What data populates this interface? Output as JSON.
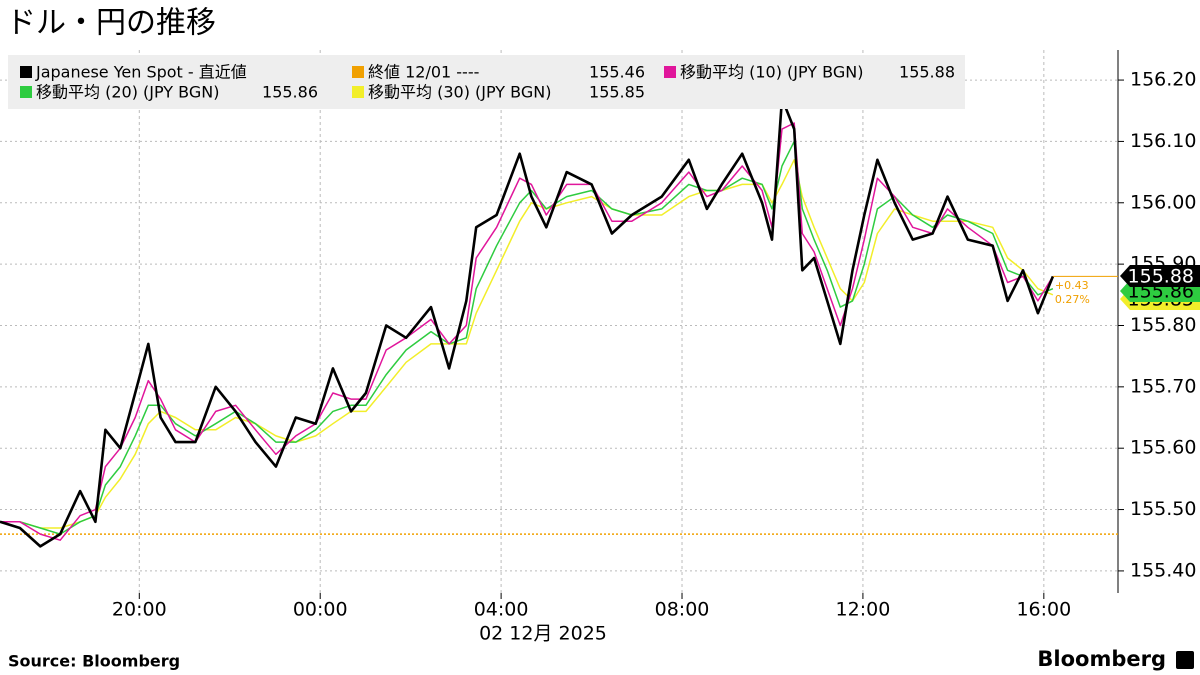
{
  "chart_data": {
    "type": "line",
    "title": "ドル・円の推移",
    "x_label": "02 12月 2025",
    "source": "Source:  Bloomberg",
    "brand": "Bloomberg",
    "x": [
      16.92,
      17.36,
      17.81,
      18.25,
      18.69,
      19.03,
      19.25,
      19.58,
      19.91,
      20.2,
      20.47,
      20.8,
      21.24,
      21.69,
      22.13,
      22.57,
      23.02,
      23.46,
      23.9,
      24.28,
      24.68,
      25.01,
      25.46,
      25.9,
      26.45,
      26.85,
      27.23,
      27.45,
      27.9,
      28.41,
      28.67,
      29.0,
      29.45,
      30.0,
      30.45,
      30.89,
      31.55,
      32.15,
      32.55,
      32.88,
      33.33,
      33.77,
      33.99,
      34.21,
      34.48,
      34.66,
      34.92,
      35.21,
      35.5,
      35.77,
      36.03,
      36.32,
      36.7,
      37.1,
      37.54,
      37.87,
      38.32,
      38.87,
      39.2,
      39.54,
      39.87,
      40.2
    ],
    "series": [
      {
        "name": "Japanese Yen Spot - 直近値",
        "color": "#000000",
        "width": 2.6,
        "values": [
          155.48,
          155.47,
          155.44,
          155.46,
          155.53,
          155.48,
          155.63,
          155.6,
          155.69,
          155.77,
          155.65,
          155.61,
          155.61,
          155.7,
          155.66,
          155.61,
          155.57,
          155.65,
          155.64,
          155.73,
          155.66,
          155.69,
          155.8,
          155.78,
          155.83,
          155.73,
          155.84,
          155.96,
          155.98,
          156.08,
          156.01,
          155.96,
          156.05,
          156.03,
          155.95,
          155.98,
          156.01,
          156.07,
          155.99,
          156.03,
          156.08,
          156.0,
          155.94,
          156.17,
          156.12,
          155.89,
          155.91,
          155.84,
          155.77,
          155.89,
          155.98,
          156.07,
          156.0,
          155.94,
          155.95,
          156.01,
          155.94,
          155.93,
          155.84,
          155.89,
          155.82,
          155.88
        ]
      },
      {
        "name": "移動平均 (10) (JPY BGN)",
        "color": "#e0169b",
        "width": 1.5,
        "latest": 155.88,
        "values": [
          155.48,
          155.48,
          155.46,
          155.45,
          155.49,
          155.5,
          155.57,
          155.6,
          155.65,
          155.71,
          155.68,
          155.63,
          155.61,
          155.66,
          155.67,
          155.63,
          155.59,
          155.62,
          155.64,
          155.69,
          155.68,
          155.68,
          155.76,
          155.78,
          155.81,
          155.77,
          155.8,
          155.91,
          155.96,
          156.04,
          156.03,
          155.98,
          156.03,
          156.03,
          155.97,
          155.97,
          156.0,
          156.05,
          156.01,
          156.02,
          156.06,
          156.02,
          155.96,
          156.12,
          156.13,
          155.95,
          155.92,
          155.86,
          155.8,
          155.86,
          155.94,
          156.04,
          156.01,
          155.96,
          155.95,
          155.99,
          155.96,
          155.93,
          155.87,
          155.88,
          155.84,
          155.88
        ]
      },
      {
        "name": "移動平均 (20) (JPY BGN)",
        "color": "#2ecc40",
        "width": 1.5,
        "latest": 155.86,
        "values": [
          155.48,
          155.48,
          155.47,
          155.46,
          155.48,
          155.49,
          155.54,
          155.57,
          155.62,
          155.67,
          155.67,
          155.64,
          155.62,
          155.64,
          155.66,
          155.64,
          155.61,
          155.61,
          155.63,
          155.66,
          155.67,
          155.67,
          155.72,
          155.76,
          155.79,
          155.77,
          155.78,
          155.86,
          155.93,
          156.0,
          156.02,
          155.99,
          156.01,
          156.02,
          155.99,
          155.98,
          155.99,
          156.03,
          156.02,
          156.02,
          156.04,
          156.03,
          155.99,
          156.06,
          156.1,
          155.99,
          155.94,
          155.89,
          155.83,
          155.84,
          155.9,
          155.99,
          156.01,
          155.98,
          155.96,
          155.98,
          155.97,
          155.95,
          155.89,
          155.88,
          155.85,
          155.86
        ]
      },
      {
        "name": "移動平均 (30) (JPY BGN)",
        "color": "#f2ee2a",
        "width": 1.5,
        "latest": 155.85,
        "values": [
          155.48,
          155.48,
          155.47,
          155.47,
          155.48,
          155.49,
          155.52,
          155.55,
          155.59,
          155.64,
          155.66,
          155.65,
          155.63,
          155.63,
          155.65,
          155.64,
          155.62,
          155.61,
          155.62,
          155.64,
          155.66,
          155.66,
          155.7,
          155.74,
          155.77,
          155.77,
          155.77,
          155.82,
          155.89,
          155.97,
          156.0,
          155.99,
          156.0,
          156.01,
          155.99,
          155.98,
          155.98,
          156.01,
          156.02,
          156.02,
          156.03,
          156.03,
          156.0,
          156.03,
          156.07,
          156.01,
          155.96,
          155.91,
          155.86,
          155.84,
          155.87,
          155.95,
          155.99,
          155.98,
          155.97,
          155.97,
          155.97,
          155.96,
          155.91,
          155.89,
          155.86,
          155.85
        ]
      }
    ],
    "reference": {
      "name": "終値 12/01 ----",
      "value": 155.46,
      "color": "#f0a000"
    },
    "annotations": [
      "+0.43",
      "0.27%"
    ],
    "xlim": [
      16.92,
      41.64
    ],
    "xticks": [
      {
        "value": 20,
        "label": "20:00"
      },
      {
        "value": 24,
        "label": "00:00"
      },
      {
        "value": 28,
        "label": "04:00"
      },
      {
        "value": 32,
        "label": "08:00"
      },
      {
        "value": 36,
        "label": "12:00"
      },
      {
        "value": 40,
        "label": "16:00"
      }
    ],
    "ylim": [
      155.364,
      156.249
    ],
    "yticks": [
      {
        "value": 155.4,
        "label": "155.40"
      },
      {
        "value": 155.5,
        "label": "155.50"
      },
      {
        "value": 155.6,
        "label": "155.60"
      },
      {
        "value": 155.7,
        "label": "155.70"
      },
      {
        "value": 155.8,
        "label": "155.80"
      },
      {
        "value": 155.9,
        "label": "155.90"
      },
      {
        "value": 156.0,
        "label": "156.00"
      },
      {
        "value": 156.1,
        "label": "156.10"
      },
      {
        "value": 156.2,
        "label": "156.20"
      }
    ],
    "grid": true
  }
}
